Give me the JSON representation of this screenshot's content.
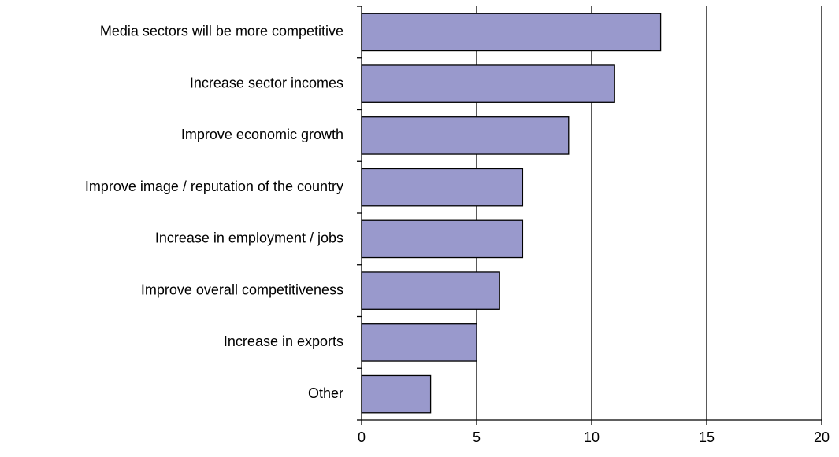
{
  "chart_data": {
    "type": "bar",
    "orientation": "horizontal",
    "title": "",
    "xlabel": "",
    "ylabel": "",
    "categories": [
      "Media sectors will be more competitive",
      "Increase sector incomes",
      "Improve economic growth",
      "Improve image / reputation of the country",
      "Increase in employment / jobs",
      "Improve overall competitiveness",
      "Increase in exports",
      "Other"
    ],
    "values": [
      13,
      11,
      9,
      7,
      7,
      6,
      5,
      3
    ],
    "xlim": [
      0,
      20
    ],
    "xticks": [
      0,
      5,
      10,
      15,
      20
    ],
    "grid": "vertical",
    "legend": "none",
    "colors": {
      "bar_fill": "#9999cc",
      "bar_stroke": "#000000",
      "gridline": "#000000"
    }
  }
}
